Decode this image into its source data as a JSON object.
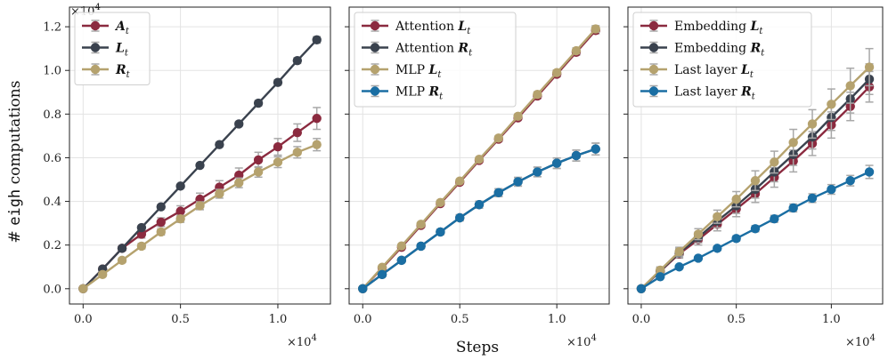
{
  "figure": {
    "ylabel_prefix": "# ",
    "ylabel_code": "eigh",
    "ylabel_suffix": " computations",
    "xlabel": "Steps",
    "y_multiplier": "×10",
    "y_multiplier_exp": "4",
    "x_multiplier": "×10",
    "x_multiplier_exp": "4"
  },
  "colors": {
    "red": "#8b2a3f",
    "dark": "#3a424e",
    "tan": "#b5a26e",
    "blue": "#1a6ea3",
    "error": "#a8a8a8"
  },
  "chart_data": [
    {
      "type": "line",
      "xlim": [
        -700,
        12700
      ],
      "ylim": [
        -700,
        12900
      ],
      "xticks": [
        0,
        5000,
        10000
      ],
      "xtick_labels": [
        "0.0",
        "0.5",
        "1.0"
      ],
      "yticks": [
        0,
        2000,
        4000,
        6000,
        8000,
        10000,
        12000
      ],
      "ytick_labels": [
        "0.0",
        "0.2",
        "0.4",
        "0.6",
        "0.8",
        "1.0",
        "1.2"
      ],
      "grid": true,
      "legend_position": "top-left",
      "x": [
        0,
        1000,
        2000,
        3000,
        4000,
        5000,
        6000,
        7000,
        8000,
        9000,
        10000,
        11000,
        12000
      ],
      "series": [
        {
          "name": "A",
          "subscript": "t",
          "color": "#8b2a3f",
          "values": [
            0,
            900,
            1850,
            2500,
            3050,
            3550,
            4100,
            4650,
            5200,
            5900,
            6500,
            7150,
            7800
          ],
          "err": [
            0,
            100,
            120,
            180,
            200,
            250,
            280,
            300,
            330,
            350,
            380,
            400,
            500
          ]
        },
        {
          "name": "L",
          "subscript": "t",
          "color": "#3a424e",
          "values": [
            0,
            900,
            1850,
            2800,
            3750,
            4700,
            5650,
            6600,
            7550,
            8500,
            9450,
            10450,
            11400
          ],
          "err": [
            0,
            50,
            60,
            80,
            80,
            80,
            90,
            100,
            100,
            120,
            120,
            130,
            150
          ]
        },
        {
          "name": "R",
          "subscript": "t",
          "color": "#b5a26e",
          "values": [
            0,
            650,
            1300,
            1950,
            2600,
            3200,
            3800,
            4350,
            4850,
            5350,
            5800,
            6250,
            6600
          ],
          "err": [
            0,
            80,
            100,
            120,
            140,
            160,
            180,
            200,
            220,
            240,
            250,
            260,
            280
          ]
        }
      ]
    },
    {
      "type": "line",
      "xlim": [
        -700,
        12700
      ],
      "ylim": [
        -700,
        12900
      ],
      "xticks": [
        0,
        5000,
        10000
      ],
      "xtick_labels": [
        "0.0",
        "0.5",
        "1.0"
      ],
      "yticks": [
        0,
        2000,
        4000,
        6000,
        8000,
        10000,
        12000
      ],
      "grid": true,
      "legend_position": "top-left",
      "x": [
        0,
        1000,
        2000,
        3000,
        4000,
        5000,
        6000,
        7000,
        8000,
        9000,
        10000,
        11000,
        12000
      ],
      "series": [
        {
          "name": "Attention",
          "symbol": "L",
          "subscript": "t",
          "color": "#8b2a3f",
          "values": [
            0,
            950,
            1900,
            2900,
            3900,
            4880,
            5880,
            6850,
            7830,
            8830,
            9830,
            10830,
            11830
          ],
          "err": [
            0,
            50,
            60,
            80,
            80,
            80,
            90,
            100,
            100,
            120,
            120,
            130,
            150
          ]
        },
        {
          "name": "Attention",
          "symbol": "R",
          "subscript": "t",
          "color": "#3a424e",
          "values": [
            0,
            650,
            1300,
            1950,
            2600,
            3250,
            3850,
            4400,
            4900,
            5350,
            5750,
            6100,
            6400
          ],
          "err": [
            0,
            60,
            80,
            100,
            120,
            140,
            160,
            180,
            200,
            220,
            240,
            250,
            270
          ]
        },
        {
          "name": "MLP",
          "symbol": "L",
          "subscript": "t",
          "color": "#b5a26e",
          "values": [
            0,
            980,
            1960,
            2950,
            3950,
            4930,
            5930,
            6900,
            7900,
            8900,
            9900,
            10900,
            11900
          ],
          "err": [
            0,
            50,
            60,
            80,
            80,
            80,
            90,
            100,
            100,
            120,
            120,
            130,
            150
          ]
        },
        {
          "name": "MLP",
          "symbol": "R",
          "subscript": "t",
          "color": "#1a6ea3",
          "values": [
            0,
            650,
            1300,
            1950,
            2600,
            3250,
            3850,
            4400,
            4900,
            5350,
            5750,
            6100,
            6400
          ],
          "err": [
            0,
            60,
            80,
            100,
            120,
            140,
            160,
            180,
            200,
            220,
            240,
            250,
            270
          ]
        }
      ]
    },
    {
      "type": "line",
      "xlim": [
        -700,
        12700
      ],
      "ylim": [
        -700,
        12900
      ],
      "xticks": [
        0,
        5000,
        10000
      ],
      "xtick_labels": [
        "0.0",
        "0.5",
        "1.0"
      ],
      "yticks": [
        0,
        2000,
        4000,
        6000,
        8000,
        10000,
        12000
      ],
      "grid": true,
      "legend_position": "top-left",
      "x": [
        0,
        1000,
        2000,
        3000,
        4000,
        5000,
        6000,
        7000,
        8000,
        9000,
        10000,
        11000,
        12000
      ],
      "series": [
        {
          "name": "Embedding",
          "symbol": "L",
          "subscript": "t",
          "color": "#8b2a3f",
          "values": [
            0,
            800,
            1600,
            2250,
            2950,
            3650,
            4350,
            5100,
            5850,
            6650,
            7500,
            8350,
            9250
          ],
          "err": [
            0,
            150,
            200,
            250,
            300,
            350,
            400,
            450,
            500,
            550,
            600,
            650,
            700
          ]
        },
        {
          "name": "Embedding",
          "symbol": "R",
          "subscript": "t",
          "color": "#3a424e",
          "values": [
            0,
            820,
            1650,
            2350,
            3100,
            3800,
            4550,
            5350,
            6150,
            6950,
            7850,
            8700,
            9600
          ],
          "err": [
            0,
            150,
            200,
            250,
            300,
            350,
            400,
            450,
            500,
            550,
            600,
            650,
            700
          ]
        },
        {
          "name": "Last layer",
          "symbol": "L",
          "subscript": "t",
          "color": "#b5a26e",
          "values": [
            0,
            850,
            1700,
            2500,
            3300,
            4100,
            4950,
            5800,
            6700,
            7550,
            8450,
            9300,
            10150
          ],
          "err": [
            0,
            150,
            200,
            250,
            300,
            350,
            450,
            500,
            600,
            650,
            700,
            800,
            850
          ]
        },
        {
          "name": "Last layer",
          "symbol": "R",
          "subscript": "t",
          "color": "#1a6ea3",
          "values": [
            0,
            550,
            1000,
            1400,
            1850,
            2300,
            2750,
            3200,
            3700,
            4150,
            4550,
            4950,
            5350
          ],
          "err": [
            0,
            50,
            60,
            80,
            100,
            120,
            140,
            160,
            180,
            200,
            220,
            240,
            300
          ]
        }
      ]
    }
  ]
}
